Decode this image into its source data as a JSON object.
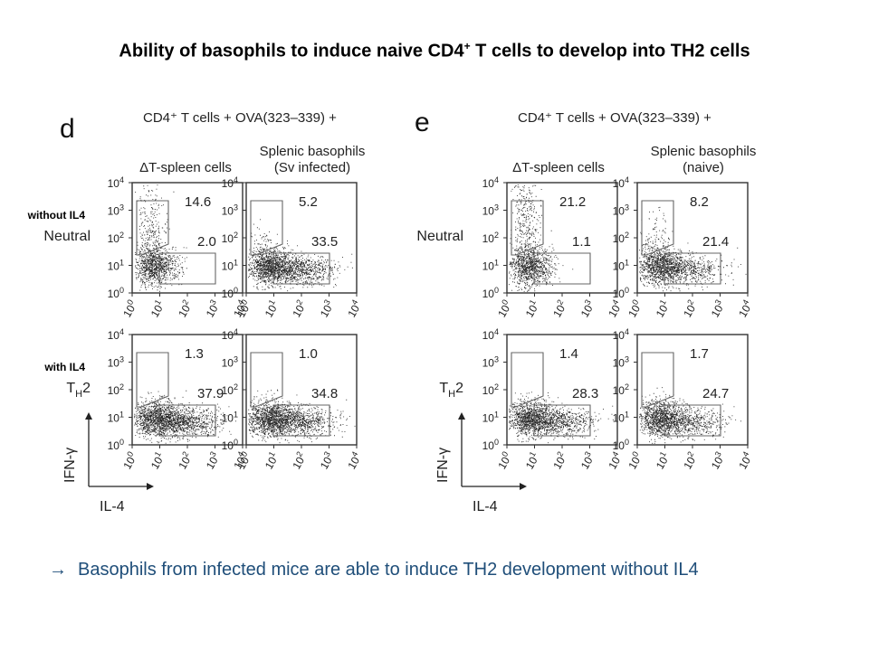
{
  "title": {
    "text": "Ability of basophils to induce naive CD4",
    "sup": "+",
    "rest": " T cells to develop into TH2 cells"
  },
  "conclusion": {
    "arrow": "→",
    "text": "Basophils from infected mice are able to induce TH2 development without IL4"
  },
  "row_labels": {
    "top": "without IL4",
    "bottom": "with IL4"
  },
  "axes": {
    "x_label": "IL-4",
    "y_label": "IFN-γ"
  },
  "panels": [
    {
      "letter": "d",
      "header": "CD4⁺ T cells + OVA(323–339) +",
      "columns": [
        {
          "title_lines": [
            "ΔT-spleen cells"
          ],
          "rows": [
            {
              "label": "Neutral",
              "upper_value": "14.6",
              "lower_value": "2.0"
            },
            {
              "label": "TH2",
              "upper_value": "1.3",
              "lower_value": "37.9"
            }
          ]
        },
        {
          "title_lines": [
            "Splenic basophils",
            "(Sv infected)"
          ],
          "rows": [
            {
              "label": "",
              "upper_value": "5.2",
              "lower_value": "33.5"
            },
            {
              "label": "",
              "upper_value": "1.0",
              "lower_value": "34.8"
            }
          ]
        }
      ]
    },
    {
      "letter": "e",
      "header": "CD4⁺ T cells + OVA(323–339) +",
      "columns": [
        {
          "title_lines": [
            "ΔT-spleen cells"
          ],
          "rows": [
            {
              "label": "Neutral",
              "upper_value": "21.2",
              "lower_value": "1.1"
            },
            {
              "label": "TH2",
              "upper_value": "1.4",
              "lower_value": "28.3"
            }
          ]
        },
        {
          "title_lines": [
            "Splenic basophils",
            "(naive)"
          ],
          "rows": [
            {
              "label": "",
              "upper_value": "8.2",
              "lower_value": "21.4"
            },
            {
              "label": "",
              "upper_value": "1.7",
              "lower_value": "24.7"
            }
          ]
        }
      ]
    }
  ],
  "tick_labels": [
    {
      "base": "10",
      "exp": "0"
    },
    {
      "base": "10",
      "exp": "1"
    },
    {
      "base": "10",
      "exp": "2"
    },
    {
      "base": "10",
      "exp": "3"
    },
    {
      "base": "10",
      "exp": "4"
    }
  ],
  "chart_data": {
    "type": "scatter",
    "title": "",
    "xlabel": "IL-4",
    "ylabel": "IFN-γ",
    "x_scale": "log",
    "y_scale": "log",
    "xlim": [
      1,
      10000
    ],
    "ylim": [
      1,
      10000
    ],
    "x_ticks": [
      "10^0",
      "10^1",
      "10^2",
      "10^3",
      "10^4"
    ],
    "y_ticks": [
      "10^0",
      "10^1",
      "10^2",
      "10^3",
      "10^4"
    ],
    "gates": [
      "IFN-γ+ (upper-left)",
      "IL-4+ (lower-right)"
    ],
    "series": [
      {
        "panel": "d",
        "population": "ΔT-spleen cells",
        "condition": "Neutral",
        "ifn_gamma_pct": 14.6,
        "il4_pct": 2.0
      },
      {
        "panel": "d",
        "population": "Splenic basophils (Sv infected)",
        "condition": "Neutral",
        "ifn_gamma_pct": 5.2,
        "il4_pct": 33.5
      },
      {
        "panel": "d",
        "population": "ΔT-spleen cells",
        "condition": "TH2",
        "ifn_gamma_pct": 1.3,
        "il4_pct": 37.9
      },
      {
        "panel": "d",
        "population": "Splenic basophils (Sv infected)",
        "condition": "TH2",
        "ifn_gamma_pct": 1.0,
        "il4_pct": 34.8
      },
      {
        "panel": "e",
        "population": "ΔT-spleen cells",
        "condition": "Neutral",
        "ifn_gamma_pct": 21.2,
        "il4_pct": 1.1
      },
      {
        "panel": "e",
        "population": "Splenic basophils (naive)",
        "condition": "Neutral",
        "ifn_gamma_pct": 8.2,
        "il4_pct": 21.4
      },
      {
        "panel": "e",
        "population": "ΔT-spleen cells",
        "condition": "TH2",
        "ifn_gamma_pct": 1.4,
        "il4_pct": 28.3
      },
      {
        "panel": "e",
        "population": "Splenic basophils (naive)",
        "condition": "TH2",
        "ifn_gamma_pct": 1.7,
        "il4_pct": 24.7
      }
    ]
  }
}
